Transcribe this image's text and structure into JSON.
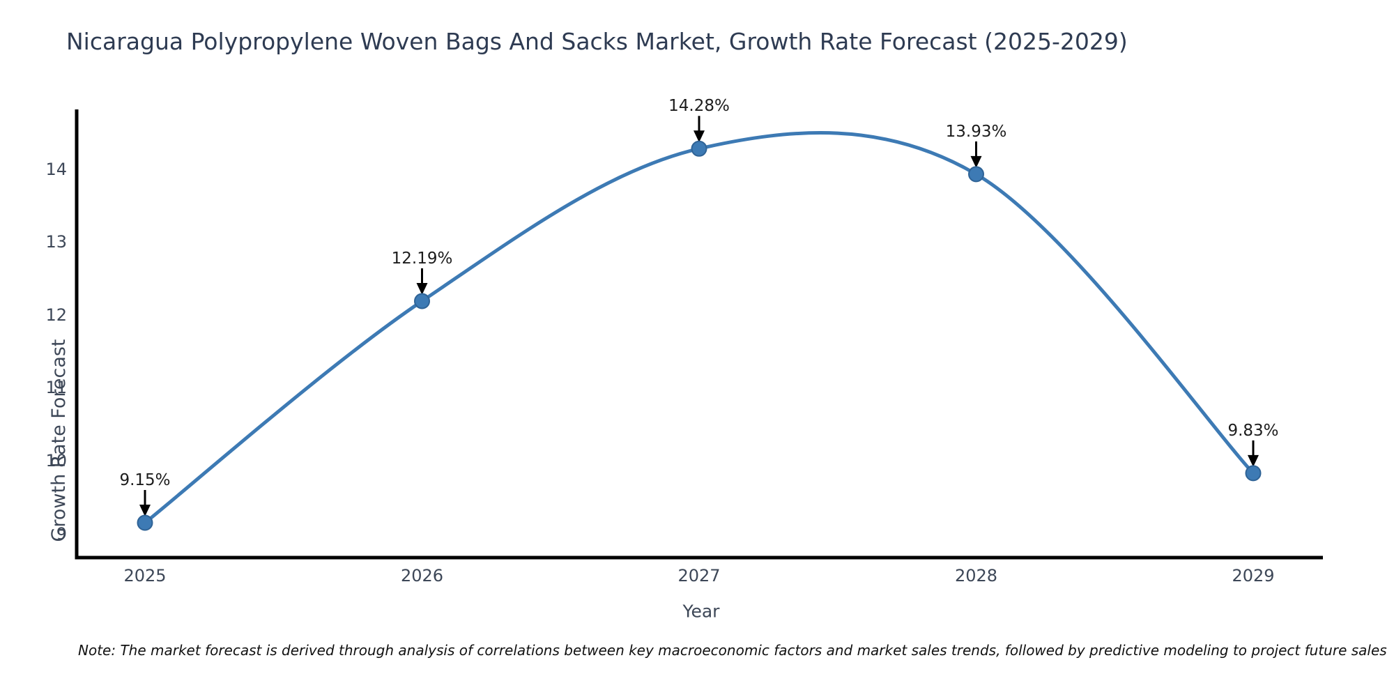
{
  "title": "Nicaragua Polypropylene Woven Bags And Sacks Market, Growth Rate Forecast (2025-2029)",
  "note": "Note: The market forecast is derived through analysis of correlations between key macroeconomic factors and market sales trends, followed by predictive modeling to project future sales",
  "chart_data": {
    "type": "line",
    "title": "Nicaragua Polypropylene Woven Bags And Sacks Market, Growth Rate Forecast (2025-2029)",
    "xlabel": "Year",
    "ylabel": "Growth Rate Forecast",
    "x": [
      2025,
      2026,
      2027,
      2028,
      2029
    ],
    "x_tick_labels": [
      "2025",
      "2026",
      "2027",
      "2028",
      "2029"
    ],
    "series": [
      {
        "name": "Growth Rate Forecast",
        "values": [
          9.15,
          12.19,
          14.28,
          13.93,
          9.83
        ]
      }
    ],
    "point_labels": [
      "9.15%",
      "12.19%",
      "14.28%",
      "13.93%",
      "9.83%"
    ],
    "y_ticks": [
      9,
      10,
      11,
      12,
      13,
      14
    ],
    "ylim": [
      8.7,
      14.8
    ],
    "grid": false,
    "legend": "none",
    "smooth_curve": true,
    "colors": {
      "line": "#3d7ab4",
      "marker_fill": "#3d7ab4",
      "marker_edge": "#2f6396",
      "axis": "#000000",
      "annotation": "#1c1c1c",
      "title": "#2e3b52",
      "tick_labels": "#3d4757"
    }
  }
}
